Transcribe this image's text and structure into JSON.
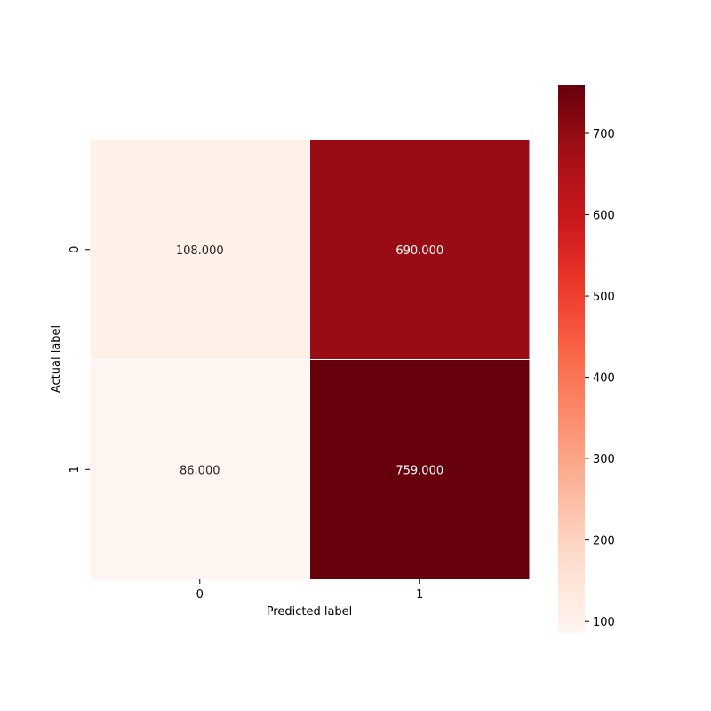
{
  "chart_data": {
    "type": "heatmap",
    "title": "",
    "xlabel": "Predicted label",
    "ylabel": "Actual label",
    "x_categories": [
      "0",
      "1"
    ],
    "y_categories": [
      "0",
      "1"
    ],
    "values": [
      [
        108,
        690
      ],
      [
        86,
        759
      ]
    ],
    "annotations": [
      [
        "108.000",
        "690.000"
      ],
      [
        "86.000",
        "759.000"
      ]
    ],
    "colormap": "Reds",
    "colorbar": {
      "range": [
        86,
        759
      ],
      "ticks": [
        100,
        200,
        300,
        400,
        500,
        600,
        700
      ],
      "tick_labels": [
        "100",
        "200",
        "300",
        "400",
        "500",
        "600",
        "700"
      ]
    },
    "cell_separator_color": "#ffffff"
  }
}
